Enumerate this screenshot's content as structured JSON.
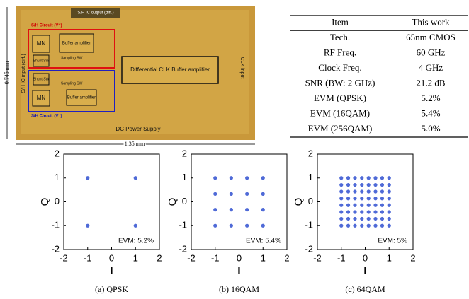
{
  "micrograph": {
    "output_label": "S/H IC output (diff.)",
    "circuit_top": "S/H Circuit (V⁺)",
    "circuit_bottom": "S/H Circuit (V⁻)",
    "mn_top": "MN",
    "mn_bottom": "MN",
    "buffer_top": "Buffer amplifier",
    "buffer_bottom": "Buffer amplifier",
    "shunt_top": "Shunt SW",
    "shunt_bottom": "Shunt SW",
    "sampling_top": "Sampling SW",
    "sampling_bottom": "Sampling SW",
    "clk_buffer": "Differential CLK Buffer amplifier",
    "clk_input": "CLK input",
    "input_label": "S/H IC input (diff.)",
    "power": "DC Power Supply",
    "height": "0.745 mm",
    "width": "1.35 mm"
  },
  "table": {
    "header": [
      "Item",
      "This work"
    ],
    "rows": [
      [
        "Tech.",
        "65nm CMOS"
      ],
      [
        "RF Freq.",
        "60 GHz"
      ],
      [
        "Clock Freq.",
        "4 GHz"
      ],
      [
        "SNR (BW: 2 GHz)",
        "21.2 dB"
      ],
      [
        "EVM (QPSK)",
        "5.2%"
      ],
      [
        "EVM (16QAM)",
        "5.4%"
      ],
      [
        "EVM (256QAM)",
        "5.0%"
      ]
    ]
  },
  "chart_data": [
    {
      "type": "scatter",
      "caption": "(a) QPSK",
      "annotation": "EVM: 5.2%",
      "x_label": "I",
      "y_label": "Q",
      "color": "#3050d0",
      "xlim": [
        -2,
        2
      ],
      "ylim": [
        -2,
        2
      ],
      "xticks": [
        -2,
        -1,
        0,
        1,
        2
      ],
      "yticks": [
        -2,
        -1,
        0,
        1,
        2
      ],
      "x": [
        -1,
        1,
        -1,
        1
      ],
      "y": [
        1,
        1,
        -1,
        -1
      ]
    },
    {
      "type": "scatter",
      "caption": "(b) 16QAM",
      "annotation": "EVM: 5.4%",
      "x_label": "I",
      "y_label": "Q",
      "color": "#3050d0",
      "xlim": [
        -2,
        2
      ],
      "ylim": [
        -2,
        2
      ],
      "xticks": [
        -2,
        -1,
        0,
        1,
        2
      ],
      "yticks": [
        -2,
        -1,
        0,
        1,
        2
      ],
      "x": [
        -1,
        -0.33,
        0.33,
        1,
        -1,
        -0.33,
        0.33,
        1,
        -1,
        -0.33,
        0.33,
        1,
        -1,
        -0.33,
        0.33,
        1
      ],
      "y": [
        1,
        1,
        1,
        1,
        0.33,
        0.33,
        0.33,
        0.33,
        -0.33,
        -0.33,
        -0.33,
        -0.33,
        -1,
        -1,
        -1,
        -1
      ]
    },
    {
      "type": "scatter",
      "caption": "(c) 64QAM",
      "annotation": "EVM: 5%",
      "x_label": "I",
      "y_label": "Q",
      "color": "#3050d0",
      "xlim": [
        -2,
        2
      ],
      "ylim": [
        -2,
        2
      ],
      "xticks": [
        -2,
        -1,
        0,
        1,
        2
      ],
      "yticks": [
        -2,
        -1,
        0,
        1,
        2
      ],
      "x": [
        -1,
        -0.71,
        -0.43,
        -0.14,
        0.14,
        0.43,
        0.71,
        1,
        -1,
        -0.71,
        -0.43,
        -0.14,
        0.14,
        0.43,
        0.71,
        1,
        -1,
        -0.71,
        -0.43,
        -0.14,
        0.14,
        0.43,
        0.71,
        1,
        -1,
        -0.71,
        -0.43,
        -0.14,
        0.14,
        0.43,
        0.71,
        1,
        -1,
        -0.71,
        -0.43,
        -0.14,
        0.14,
        0.43,
        0.71,
        1,
        -1,
        -0.71,
        -0.43,
        -0.14,
        0.14,
        0.43,
        0.71,
        1,
        -1,
        -0.71,
        -0.43,
        -0.14,
        0.14,
        0.43,
        0.71,
        1,
        -1,
        -0.71,
        -0.43,
        -0.14,
        0.14,
        0.43,
        0.71,
        1
      ],
      "y": [
        1,
        1,
        1,
        1,
        1,
        1,
        1,
        1,
        0.71,
        0.71,
        0.71,
        0.71,
        0.71,
        0.71,
        0.71,
        0.71,
        0.43,
        0.43,
        0.43,
        0.43,
        0.43,
        0.43,
        0.43,
        0.43,
        0.14,
        0.14,
        0.14,
        0.14,
        0.14,
        0.14,
        0.14,
        0.14,
        -0.14,
        -0.14,
        -0.14,
        -0.14,
        -0.14,
        -0.14,
        -0.14,
        -0.14,
        -0.43,
        -0.43,
        -0.43,
        -0.43,
        -0.43,
        -0.43,
        -0.43,
        -0.43,
        -0.71,
        -0.71,
        -0.71,
        -0.71,
        -0.71,
        -0.71,
        -0.71,
        -0.71,
        -1,
        -1,
        -1,
        -1,
        -1,
        -1,
        -1,
        -1
      ]
    }
  ]
}
